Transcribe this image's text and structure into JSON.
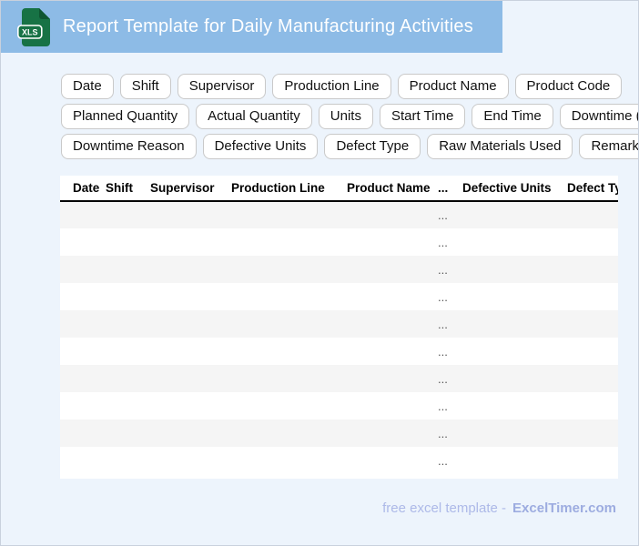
{
  "window": {
    "title": "Report Template for Daily Manufacturing Activities",
    "icon_label": "XLS"
  },
  "colors": {
    "titlebar_bg": "#8dbbe6",
    "page_bg": "#edf4fc",
    "icon_green": "#177245",
    "icon_green_dark": "#0e5632",
    "row_alt": "#f5f5f5",
    "footer_text": "#adb9e8",
    "footer_brand": "#9dace0"
  },
  "chips": {
    "rows": [
      [
        "Date",
        "Shift",
        "Supervisor",
        "Production Line",
        "Product Name",
        "Product Code"
      ],
      [
        "Planned Quantity",
        "Actual Quantity",
        "Units",
        "Start Time",
        "End Time",
        "Downtime (min)"
      ],
      [
        "Downtime Reason",
        "Defective Units",
        "Defect Type",
        "Raw Materials Used",
        "Remarks"
      ]
    ]
  },
  "table": {
    "headers": [
      "Date",
      "Shift",
      "Supervisor",
      "Production Line",
      "Product Name",
      "...",
      "Defective Units",
      "Defect Type"
    ],
    "placeholder": "...",
    "rows": [
      [
        "",
        "",
        "",
        "",
        "",
        "...",
        "",
        ""
      ],
      [
        "",
        "",
        "",
        "",
        "",
        "...",
        "",
        ""
      ],
      [
        "",
        "",
        "",
        "",
        "",
        "...",
        "",
        ""
      ],
      [
        "",
        "",
        "",
        "",
        "",
        "...",
        "",
        ""
      ],
      [
        "",
        "",
        "",
        "",
        "",
        "...",
        "",
        ""
      ],
      [
        "",
        "",
        "",
        "",
        "",
        "...",
        "",
        ""
      ],
      [
        "",
        "",
        "",
        "",
        "",
        "...",
        "",
        ""
      ],
      [
        "",
        "",
        "",
        "",
        "",
        "...",
        "",
        ""
      ],
      [
        "",
        "",
        "",
        "",
        "",
        "...",
        "",
        ""
      ],
      [
        "",
        "",
        "",
        "",
        "",
        "...",
        "",
        ""
      ]
    ]
  },
  "footer": {
    "text": "free excel template -",
    "brand": "ExcelTimer.com"
  }
}
